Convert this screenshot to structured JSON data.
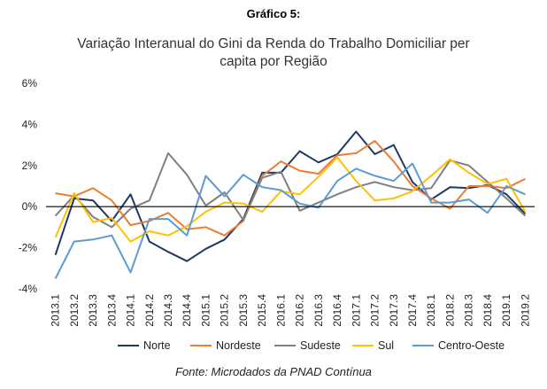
{
  "chart_label_top": "Gráfico 5:",
  "title_lines": [
    "Variação Interanual do Gini da Renda do Trabalho Domiciliar per",
    "capita por Região"
  ],
  "source": "Fonte: Microdados da PNAD Contínua",
  "chart_data": {
    "type": "line",
    "title": "Variação Interanual do Gini da Renda do Trabalho Domiciliar per capita por Região",
    "xlabel": "",
    "ylabel": "",
    "ylim": [
      -4,
      6
    ],
    "yticks": [
      -4,
      -2,
      0,
      2,
      4,
      6
    ],
    "ytick_labels": [
      "-4%",
      "-2%",
      "0%",
      "2%",
      "4%",
      "6%"
    ],
    "grid": false,
    "legend_position": "bottom",
    "categories": [
      "2013.1",
      "2013.2",
      "2013.3",
      "2013.4",
      "2014.1",
      "2014.2",
      "2014.3",
      "2014.4",
      "2015.1",
      "2015.2",
      "2015.3",
      "2015.4",
      "2016.1",
      "2016.2",
      "2016.3",
      "2016.4",
      "2017.1",
      "2017.2",
      "2017.3",
      "2017.4",
      "2018.1",
      "2018.2",
      "2018.3",
      "2018.4",
      "2019.1",
      "2019.2"
    ],
    "series": [
      {
        "name": "Norte",
        "color": "#1f3864",
        "values": [
          -2.35,
          0.4,
          0.3,
          -0.7,
          0.6,
          -1.7,
          -2.2,
          -2.65,
          -2.05,
          -1.6,
          -0.6,
          1.65,
          1.65,
          2.7,
          2.15,
          2.55,
          3.65,
          2.55,
          3.0,
          1.2,
          0.35,
          0.95,
          0.9,
          1.05,
          0.6,
          -0.35
        ]
      },
      {
        "name": "Nordeste",
        "color": "#ed7d31",
        "values": [
          0.65,
          0.5,
          0.9,
          0.3,
          -0.9,
          -0.7,
          -0.3,
          -1.1,
          -1.0,
          -1.4,
          -0.7,
          1.5,
          2.2,
          1.75,
          1.6,
          2.5,
          2.6,
          3.2,
          2.2,
          1.0,
          0.4,
          -0.1,
          1.0,
          1.0,
          0.9,
          1.35
        ]
      },
      {
        "name": "Sudeste",
        "color": "#808080",
        "values": [
          -0.45,
          0.55,
          -0.5,
          -1.0,
          -0.1,
          0.3,
          2.6,
          1.55,
          0.05,
          0.7,
          -0.65,
          1.4,
          1.7,
          -0.2,
          0.2,
          0.6,
          0.95,
          1.2,
          0.95,
          0.8,
          0.9,
          2.25,
          2.0,
          1.2,
          0.4,
          -0.45
        ]
      },
      {
        "name": "Sul",
        "color": "#ffc000",
        "values": [
          -1.5,
          0.65,
          -0.75,
          -0.55,
          -1.7,
          -1.2,
          -1.4,
          -0.95,
          -0.25,
          0.2,
          0.15,
          -0.25,
          0.75,
          0.6,
          1.45,
          2.4,
          1.25,
          0.3,
          0.4,
          0.75,
          1.5,
          2.3,
          1.65,
          1.1,
          1.35,
          -0.25
        ]
      },
      {
        "name": "Centro-Oeste",
        "color": "#5b9bd5",
        "values": [
          -3.5,
          -1.7,
          -1.6,
          -1.4,
          -3.2,
          -0.6,
          -0.6,
          -1.4,
          1.5,
          0.5,
          1.55,
          0.95,
          0.8,
          0.15,
          -0.05,
          1.25,
          1.85,
          1.5,
          1.25,
          2.1,
          0.2,
          0.2,
          0.35,
          -0.3,
          1.0,
          0.6
        ]
      }
    ]
  }
}
